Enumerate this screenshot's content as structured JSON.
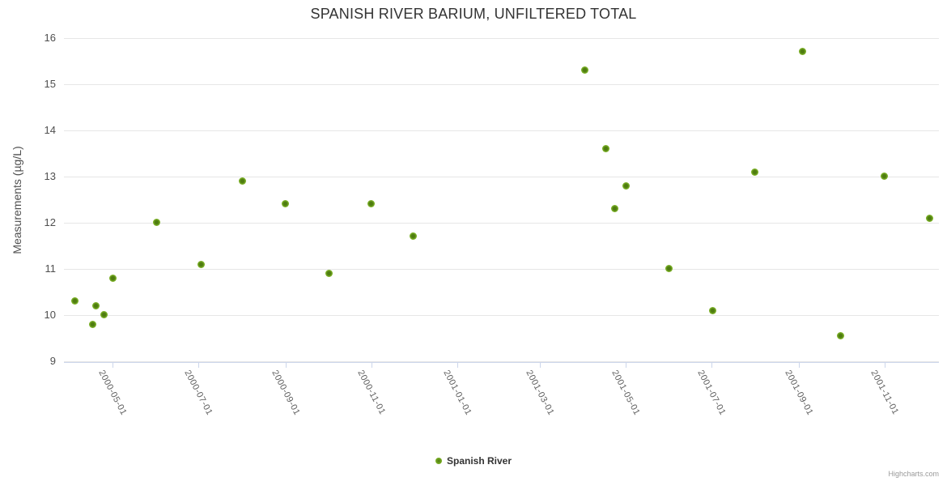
{
  "credits": "Highcharts.com",
  "colors": {
    "point_outer": "#7cb127",
    "point_inner": "#4e7c10",
    "grid": "#e6e6e6",
    "axis_line": "#ccd6eb",
    "title_color": "#333333",
    "axis_label_color": "#606060"
  },
  "chart_data": {
    "type": "scatter",
    "title": "SPANISH RIVER BARIUM, UNFILTERED TOTAL",
    "xlabel": "",
    "ylabel": "Measurements (µg/L)",
    "ylim": [
      9,
      16
    ],
    "y_ticks": [
      9,
      10,
      11,
      12,
      13,
      14,
      15,
      16
    ],
    "x_type": "datetime",
    "x_tick_labels": [
      "2000-05-01",
      "2000-07-01",
      "2000-09-01",
      "2000-11-01",
      "2001-01-01",
      "2001-03-01",
      "2001-05-01",
      "2001-07-01",
      "2001-09-01",
      "2001-11-01"
    ],
    "grid": "horizontal-only",
    "legend_position": "bottom-center",
    "series": [
      {
        "name": "Spanish River",
        "color": "#7cb127",
        "data": [
          {
            "date": "2000-04-04",
            "value": 10.3
          },
          {
            "date": "2000-04-17",
            "value": 9.8
          },
          {
            "date": "2000-04-19",
            "value": 10.2
          },
          {
            "date": "2000-04-25",
            "value": 10.0
          },
          {
            "date": "2000-05-01",
            "value": 10.8
          },
          {
            "date": "2000-06-01",
            "value": 12.0
          },
          {
            "date": "2000-07-03",
            "value": 11.1
          },
          {
            "date": "2000-08-01",
            "value": 12.9
          },
          {
            "date": "2000-09-01",
            "value": 12.4
          },
          {
            "date": "2000-10-02",
            "value": 10.9
          },
          {
            "date": "2000-11-01",
            "value": 12.4
          },
          {
            "date": "2000-12-01",
            "value": 11.7
          },
          {
            "date": "2001-04-02",
            "value": 15.3
          },
          {
            "date": "2001-04-17",
            "value": 13.6
          },
          {
            "date": "2001-04-23",
            "value": 12.3
          },
          {
            "date": "2001-05-01",
            "value": 12.8
          },
          {
            "date": "2001-06-01",
            "value": 11.0
          },
          {
            "date": "2001-07-02",
            "value": 10.1
          },
          {
            "date": "2001-08-01",
            "value": 13.1
          },
          {
            "date": "2001-09-04",
            "value": 15.7
          },
          {
            "date": "2001-10-01",
            "value": 9.55
          },
          {
            "date": "2001-11-01",
            "value": 13.0
          },
          {
            "date": "2001-12-03",
            "value": 12.1
          }
        ]
      }
    ]
  }
}
